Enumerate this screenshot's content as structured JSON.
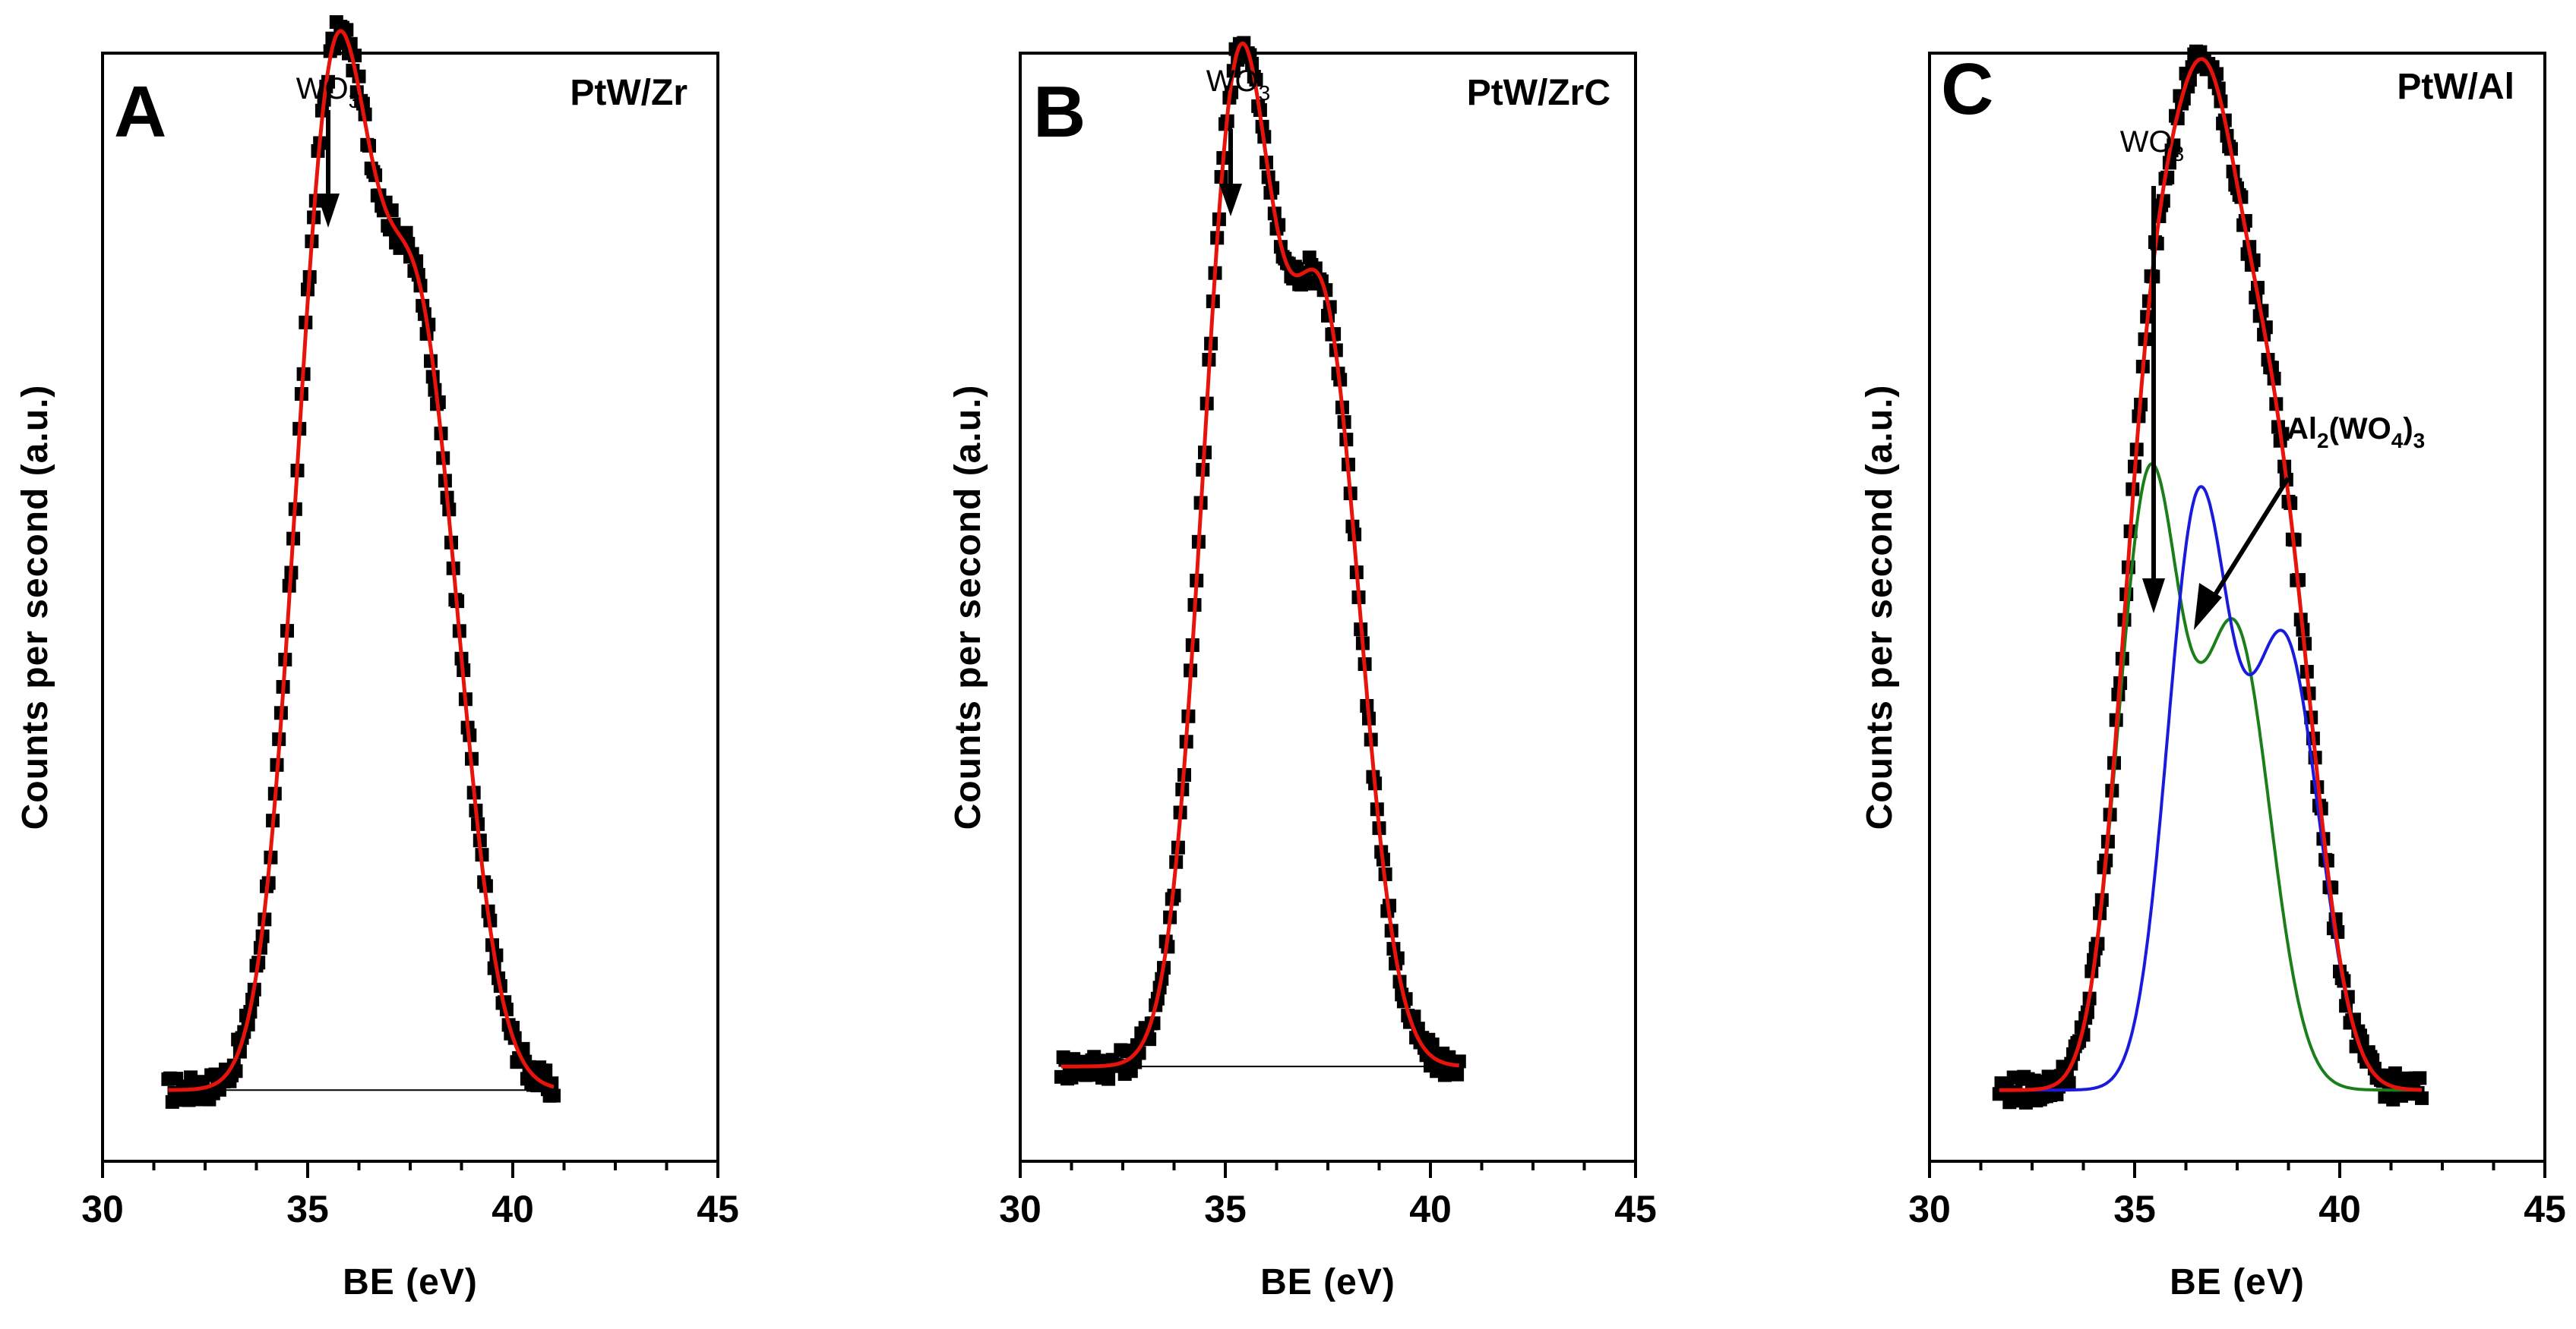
{
  "chart_data": [
    {
      "type": "line",
      "panel": "A",
      "sample": "PtW/Zr",
      "xlabel": "BE (eV)",
      "ylabel": "Counts per second (a.u.)",
      "xlim": [
        30,
        45
      ],
      "xticks": [
        30,
        35,
        40,
        45
      ],
      "xtick_labels": [
        "30",
        "35",
        "40",
        "45"
      ],
      "ylim": [
        0,
        1
      ],
      "data_range": [
        31.6,
        41.0
      ],
      "baseline": 0.04,
      "peaks": [
        {
          "center": 35.6,
          "amp": 0.86,
          "sigma": 0.9
        },
        {
          "center": 37.7,
          "amp": 0.67,
          "sigma": 1.0
        }
      ],
      "series": [
        {
          "name": "Experimental",
          "style": "markers",
          "color": "#000000"
        },
        {
          "name": "Fit",
          "style": "line",
          "color": "#e8130b"
        },
        {
          "name": "Background",
          "style": "line",
          "color": "#000000"
        }
      ],
      "annotations": [
        {
          "text": "WO",
          "sub": "3",
          "x": 35.6
        }
      ]
    },
    {
      "type": "line",
      "panel": "B",
      "sample": "PtW/ZrC",
      "xlabel": "BE (eV)",
      "ylabel": "Counts per second (a.u.)",
      "xlim": [
        30,
        45
      ],
      "xticks": [
        30,
        35,
        40,
        45
      ],
      "xtick_labels": [
        "30",
        "35",
        "40",
        "45"
      ],
      "ylim": [
        0,
        1
      ],
      "data_range": [
        31.0,
        40.7
      ],
      "baseline": 0.06,
      "peaks": [
        {
          "center": 35.3,
          "amp": 0.87,
          "sigma": 0.85
        },
        {
          "center": 37.4,
          "amp": 0.66,
          "sigma": 0.9
        }
      ],
      "series": [
        {
          "name": "Experimental",
          "style": "markers",
          "color": "#000000"
        },
        {
          "name": "Fit",
          "style": "line",
          "color": "#e8130b"
        },
        {
          "name": "Background",
          "style": "line",
          "color": "#000000"
        }
      ],
      "annotations": [
        {
          "text": "WO",
          "sub": "3",
          "x": 35.3
        }
      ]
    },
    {
      "type": "line",
      "panel": "C",
      "sample": "PtW/Al",
      "xlabel": "BE (eV)",
      "ylabel": "Counts per second (a.u.)",
      "xlim": [
        30,
        45
      ],
      "xticks": [
        30,
        35,
        40,
        45
      ],
      "xtick_labels": [
        "30",
        "35",
        "40",
        "45"
      ],
      "ylim": [
        0,
        1
      ],
      "data_range": [
        31.7,
        42.0
      ],
      "baseline": 0.04,
      "components": [
        {
          "name": "WO3",
          "color": "#1a7f1a",
          "peaks": [
            {
              "center": 35.35,
              "amp": 0.54,
              "sigma": 0.75
            },
            {
              "center": 37.45,
              "amp": 0.41,
              "sigma": 0.85
            }
          ]
        },
        {
          "name": "Al2(WO4)3",
          "color": "#1a1adc",
          "peaks": [
            {
              "center": 36.55,
              "amp": 0.52,
              "sigma": 0.75
            },
            {
              "center": 38.65,
              "amp": 0.4,
              "sigma": 0.85
            }
          ]
        }
      ],
      "series": [
        {
          "name": "Experimental",
          "style": "markers",
          "color": "#000000"
        },
        {
          "name": "Fit",
          "style": "line",
          "color": "#e8130b"
        },
        {
          "name": "WO3 component",
          "style": "line",
          "color": "#1a7f1a"
        },
        {
          "name": "Al2(WO4)3 component",
          "style": "line",
          "color": "#1a1adc"
        }
      ],
      "annotations": [
        {
          "text": "WO",
          "sub": "3",
          "x": 35.4
        },
        {
          "text": "Al",
          "sub": "2",
          "text2": "(WO",
          "sub2": "4",
          "text3": ")",
          "sub3": "3",
          "x": 36.6
        }
      ]
    }
  ]
}
